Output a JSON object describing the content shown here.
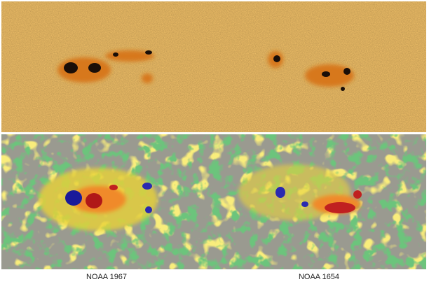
{
  "captions": [
    "NOAA 1967",
    "NOAA 1654"
  ]
}
